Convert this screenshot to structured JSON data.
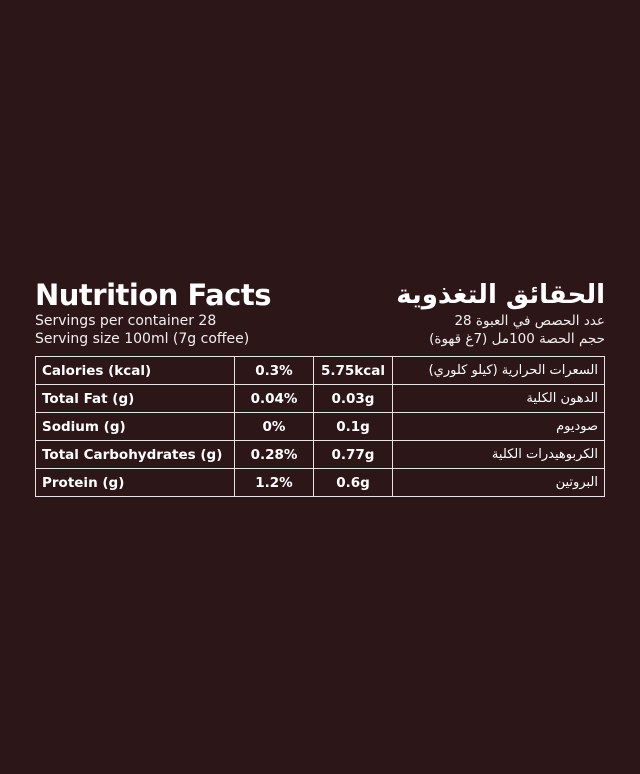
{
  "header": {
    "title_en": "Nutrition Facts",
    "title_ar": "الحقائق التغذوية",
    "servings_en": "Servings per container 28",
    "serving_size_en": "Serving size 100ml (7g coffee)",
    "servings_ar": "عدد الحصص في العبوة 28",
    "serving_size_ar": "حجم الحصة 100مل (7غ قهوة)"
  },
  "table": {
    "rows": [
      {
        "label": "Calories (kcal)",
        "percent": "0.3%",
        "value": "5.75kcal",
        "label_ar": "السعرات الحرارية (كيلو كلوري)"
      },
      {
        "label": "Total Fat (g)",
        "percent": "0.04%",
        "value": "0.03g",
        "label_ar": "الدهون الكلية"
      },
      {
        "label": "Sodium (g)",
        "percent": "0%",
        "value": "0.1g",
        "label_ar": "صوديوم"
      },
      {
        "label": "Total Carbohydrates (g)",
        "percent": "0.28%",
        "value": "0.77g",
        "label_ar": "الكربوهيدرات الكلية"
      },
      {
        "label": "Protein (g)",
        "percent": "1.2%",
        "value": "0.6g",
        "label_ar": "البروتين"
      }
    ]
  }
}
